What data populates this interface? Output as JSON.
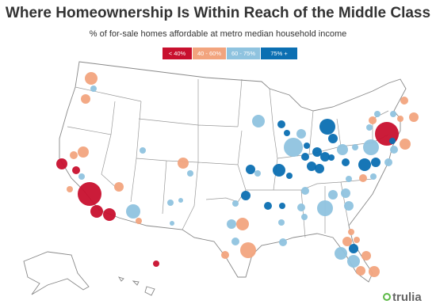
{
  "title": "Where Homeownership Is Within Reach of the Middle Class",
  "subtitle": "% of for-sale homes affordable at metro median household income",
  "legend": [
    {
      "label": "< 40%",
      "color": "#c8102e"
    },
    {
      "label": "40 - 60%",
      "color": "#f2a47e"
    },
    {
      "label": "60 - 75%",
      "color": "#8fc3df"
    },
    {
      "label": "75% +",
      "color": "#0b6fb2"
    }
  ],
  "logo": "trulia"
}
